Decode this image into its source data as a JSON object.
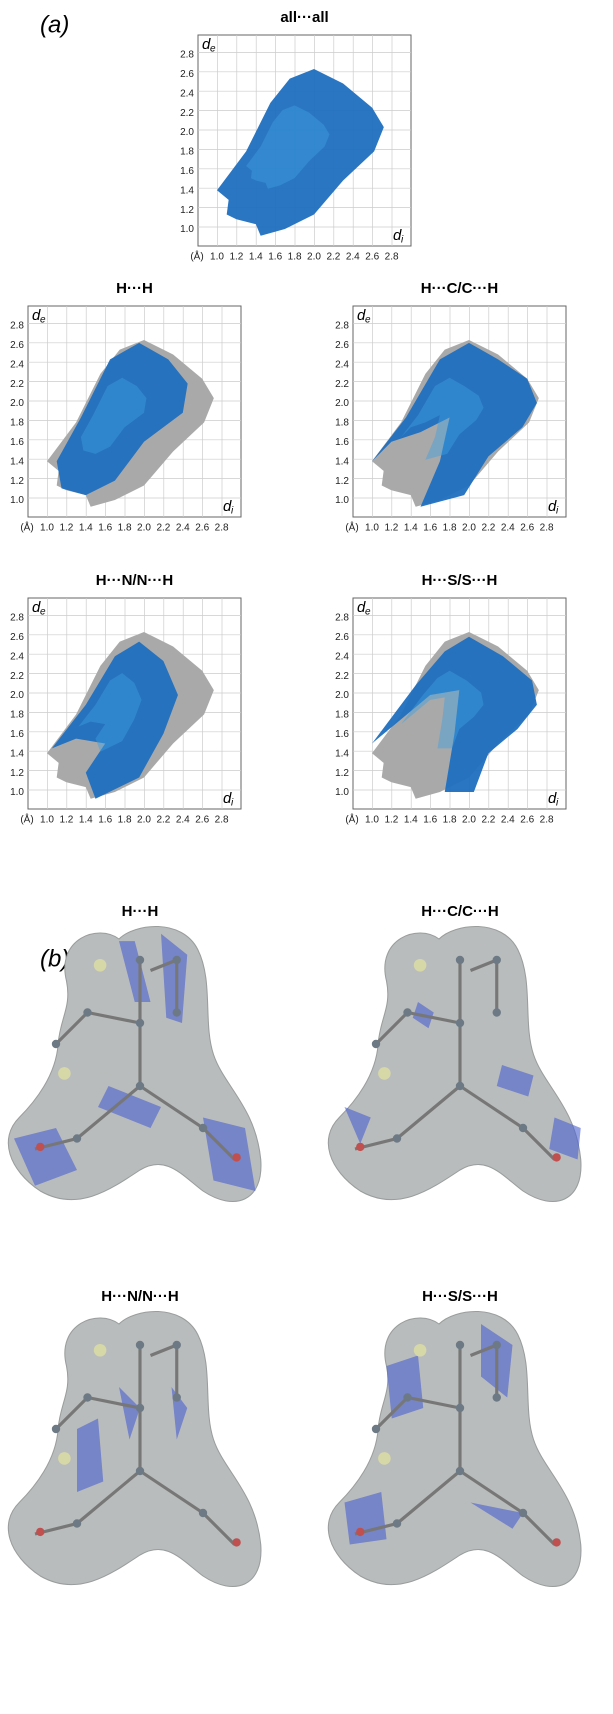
{
  "panel_a": {
    "label": "(a)",
    "axes": {
      "yticks": [
        "2.8",
        "2.6",
        "2.4",
        "2.2",
        "2.0",
        "1.8",
        "1.6",
        "1.4",
        "1.2",
        "1.0"
      ],
      "xticks": [
        "1.0",
        "1.2",
        "1.4",
        "1.6",
        "1.8",
        "2.0",
        "2.2",
        "2.4",
        "2.6",
        "2.8"
      ],
      "unit": "(Å)",
      "y_label": {
        "main": "d",
        "sub": "e"
      },
      "x_label": {
        "main": "d",
        "sub": "i"
      }
    },
    "plots": [
      {
        "title": "all···all"
      },
      {
        "title": "H···H"
      },
      {
        "title": "H···C/C···H"
      },
      {
        "title": "H···N/N···H"
      },
      {
        "title": "H···S/S···H"
      }
    ]
  },
  "panel_b": {
    "label": "(b)",
    "surfaces": [
      {
        "title": "H···H"
      },
      {
        "title": "H···C/C···H"
      },
      {
        "title": "H···N/N···H"
      },
      {
        "title": "H···S/S···H"
      }
    ]
  }
}
